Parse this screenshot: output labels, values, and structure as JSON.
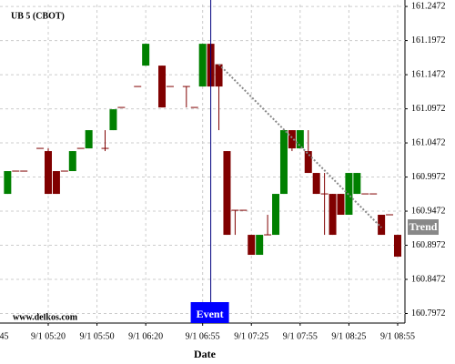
{
  "chart_data": {
    "type": "candlestick",
    "title": "UB 5 (CBOT)",
    "watermark": "www.delkos.com",
    "x_label": "Date",
    "up_color": "#008000",
    "down_color": "#800000",
    "grid": true,
    "ylim": [
      160.7832,
      161.25
    ],
    "yticks": [
      161.2472,
      161.1972,
      161.1472,
      161.0972,
      161.0472,
      160.9972,
      160.9472,
      160.8972,
      160.8472,
      160.7972
    ],
    "xticks": [
      "9/1 04:45",
      "9/1 05:20",
      "9/1 05:50",
      "9/1 06:20",
      "9/1 06:55",
      "9/1 07:25",
      "9/1 07:55",
      "9/1 08:25",
      "9/1 08:55"
    ],
    "x": [
      "9/1 04:55",
      "9/1 05:00",
      "9/1 05:05",
      "9/1 05:15",
      "9/1 05:20",
      "9/1 05:25",
      "9/1 05:30",
      "9/1 05:35",
      "9/1 05:40",
      "9/1 05:45",
      "9/1 05:55",
      "9/1 06:00",
      "9/1 06:05",
      "9/1 06:15",
      "9/1 06:20",
      "9/1 06:30",
      "9/1 06:35",
      "9/1 06:45",
      "9/1 06:50",
      "9/1 06:55",
      "9/1 07:00",
      "9/1 07:05",
      "9/1 07:10",
      "9/1 07:15",
      "9/1 07:20",
      "9/1 07:25",
      "9/1 07:30",
      "9/1 07:35",
      "9/1 07:40",
      "9/1 07:45",
      "9/1 07:50",
      "9/1 07:55",
      "9/1 08:00",
      "9/1 08:05",
      "9/1 08:10",
      "9/1 08:15",
      "9/1 08:20",
      "9/1 08:25",
      "9/1 08:30",
      "9/1 08:35",
      "9/1 08:40",
      "9/1 08:45",
      "9/1 08:50",
      "9/1 08:55"
    ],
    "open": [
      160.9725,
      161.0059,
      161.0059,
      161.0392,
      161.0352,
      161.0059,
      161.0059,
      161.0059,
      161.0392,
      161.0392,
      161.0392,
      161.0659,
      161.0992,
      161.1299,
      161.1605,
      161.1605,
      161.1299,
      161.1299,
      161.0992,
      161.1299,
      161.1925,
      161.1625,
      161.0352,
      160.9485,
      160.9485,
      160.9125,
      160.8832,
      160.9125,
      160.9125,
      160.9725,
      161.0659,
      161.0392,
      161.0352,
      161.0032,
      160.9725,
      160.9725,
      160.9725,
      160.9419,
      160.9725,
      160.9725,
      160.9725,
      160.9419,
      160.9419,
      160.9125
    ],
    "high": [
      161.0059,
      161.0059,
      161.0059,
      161.0392,
      161.0392,
      161.0059,
      161.0059,
      161.0352,
      161.0392,
      161.0659,
      161.0659,
      161.0965,
      161.0992,
      161.1299,
      161.1925,
      161.1605,
      161.1299,
      161.1299,
      161.0992,
      161.1925,
      161.1925,
      161.1625,
      161.0352,
      160.9485,
      160.9485,
      160.9125,
      160.9125,
      160.9419,
      160.9725,
      161.0659,
      161.0659,
      161.0659,
      161.0659,
      161.0032,
      161.0032,
      160.9725,
      160.9725,
      161.0032,
      161.0032,
      160.9725,
      160.9725,
      160.9419,
      160.9419,
      160.9125
    ],
    "low": [
      160.9725,
      161.0059,
      161.0059,
      161.0392,
      160.9725,
      160.9725,
      161.0059,
      161.0059,
      161.0392,
      161.0392,
      161.0352,
      161.0659,
      161.0992,
      161.1299,
      161.1605,
      161.0992,
      161.1299,
      161.0992,
      161.0992,
      161.1299,
      161.1299,
      161.0659,
      160.9125,
      160.9125,
      160.9485,
      160.8832,
      160.8832,
      160.9125,
      160.9125,
      160.9725,
      161.0352,
      161.0392,
      161.0032,
      160.9725,
      160.9125,
      160.9125,
      160.9419,
      160.9419,
      160.9725,
      160.9725,
      160.9725,
      160.9125,
      160.9419,
      160.8805
    ],
    "close": [
      161.0059,
      161.0059,
      161.0059,
      161.0392,
      160.9725,
      160.9725,
      161.0059,
      161.0352,
      161.0392,
      161.0659,
      161.0392,
      161.0965,
      161.0992,
      161.1299,
      161.1925,
      161.0992,
      161.1299,
      161.1299,
      161.0992,
      161.1925,
      161.1299,
      161.1299,
      160.9125,
      160.9485,
      160.9485,
      160.8832,
      160.9125,
      160.9125,
      160.9725,
      161.0659,
      161.0392,
      161.0659,
      161.0032,
      160.9725,
      160.9725,
      160.9125,
      160.9419,
      161.0032,
      161.0032,
      160.9725,
      160.9725,
      160.9125,
      160.9419,
      160.8805
    ],
    "event": {
      "label": "Event",
      "x": "9/1 07:00"
    },
    "trend": {
      "label": "Trend",
      "x": [
        "9/1 07:05",
        "9/1 08:45"
      ],
      "y": [
        161.1625,
        160.9232
      ]
    }
  }
}
